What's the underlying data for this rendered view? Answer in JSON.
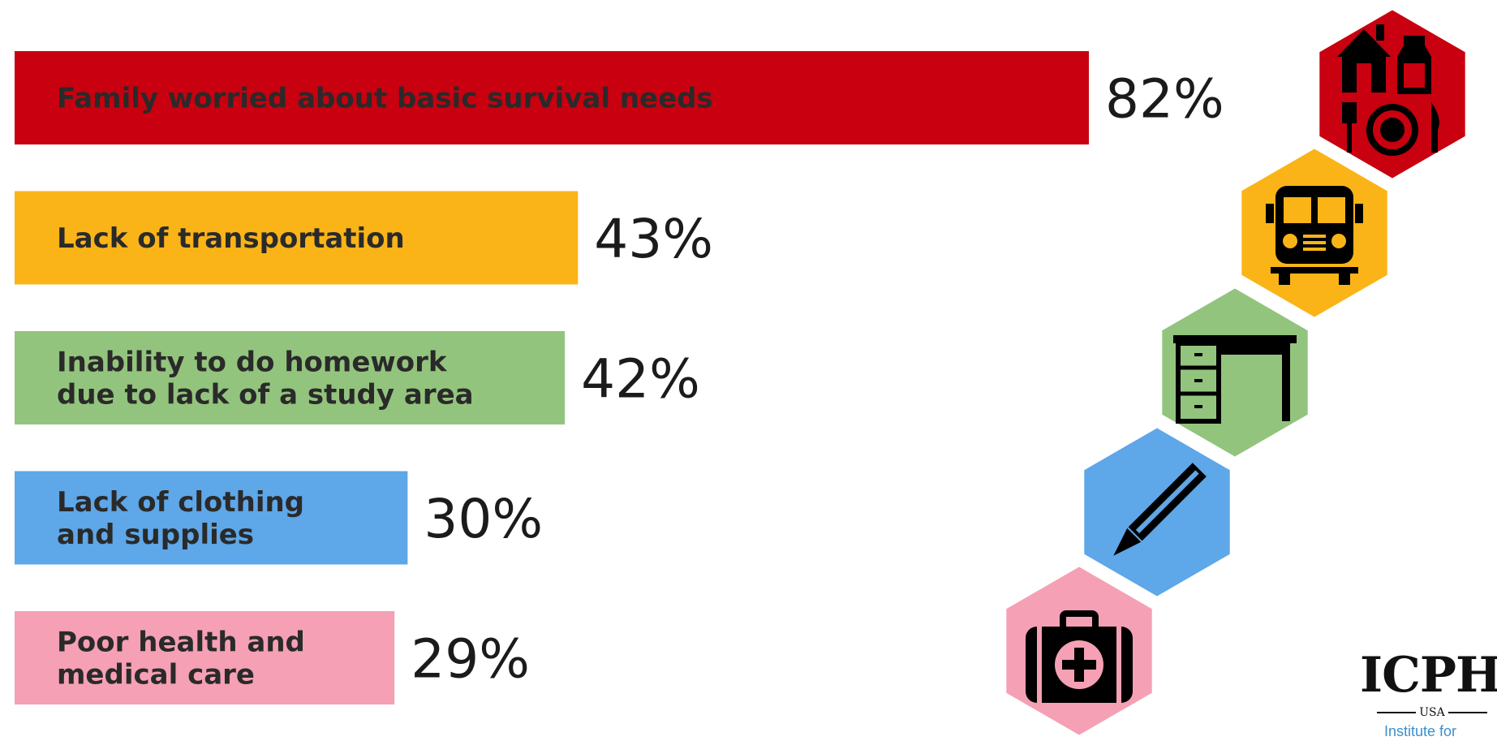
{
  "chart_data": {
    "type": "bar",
    "orientation": "horizontal",
    "unit": "%",
    "categories": [
      "Family worried about basic survival needs",
      "Lack of transportation",
      "Inability to do homework due to lack of a study area",
      "Lack of clothing and supplies",
      "Poor health and medical care"
    ],
    "category_lines": [
      [
        "Family worried about basic survival needs"
      ],
      [
        "Lack of transportation"
      ],
      [
        "Inability to do homework",
        "due to lack of a study area"
      ],
      [
        "Lack of clothing",
        "and supplies"
      ],
      [
        "Poor health and",
        "medical care"
      ]
    ],
    "values": [
      82,
      43,
      42,
      30,
      29
    ],
    "value_labels": [
      "82%",
      "43%",
      "42%",
      "30%",
      "29%"
    ],
    "colors": [
      "#c8000f",
      "#fbb417",
      "#93c47d",
      "#5ea7e8",
      "#f5a0b4"
    ],
    "icons": [
      "house-food-icon",
      "school-bus-icon",
      "desk-icon",
      "pencil-icon",
      "medical-kit-icon"
    ],
    "xlim": [
      0,
      82
    ]
  },
  "logo": {
    "name": "ICPH",
    "sub": "USA",
    "tagline": "Institute for"
  }
}
